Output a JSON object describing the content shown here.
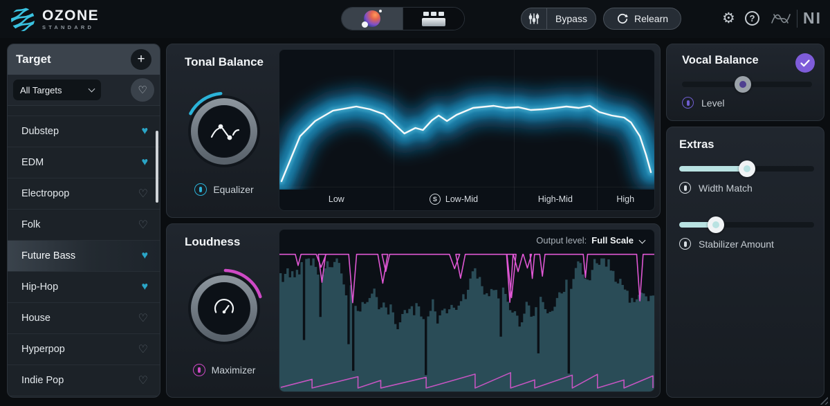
{
  "header": {
    "app_name": "OZONE",
    "app_tier": "STANDARD",
    "bypass_label": "Bypass",
    "relearn_label": "Relearn",
    "ni_logo": "NI"
  },
  "sidebar": {
    "title": "Target",
    "filter_value": "All Targets",
    "items": [
      {
        "label": "Dubstep",
        "favorite": true,
        "selected": false
      },
      {
        "label": "EDM",
        "favorite": true,
        "selected": false
      },
      {
        "label": "Electropop",
        "favorite": false,
        "selected": false
      },
      {
        "label": "Folk",
        "favorite": false,
        "selected": false
      },
      {
        "label": "Future Bass",
        "favorite": true,
        "selected": true
      },
      {
        "label": "Hip-Hop",
        "favorite": true,
        "selected": false
      },
      {
        "label": "House",
        "favorite": false,
        "selected": false
      },
      {
        "label": "Hyperpop",
        "favorite": false,
        "selected": false
      },
      {
        "label": "Indie Pop",
        "favorite": false,
        "selected": false
      }
    ]
  },
  "tonal_balance": {
    "title": "Tonal Balance",
    "module_label": "Equalizer",
    "bands": [
      {
        "label": "Low",
        "solo": false
      },
      {
        "label": "Low-Mid",
        "solo": true
      },
      {
        "label": "High-Mid",
        "solo": false
      },
      {
        "label": "High",
        "solo": false
      }
    ],
    "curve_points": [
      [
        3,
        190
      ],
      [
        30,
        125
      ],
      [
        52,
        103
      ],
      [
        78,
        88
      ],
      [
        112,
        82
      ],
      [
        132,
        86
      ],
      [
        152,
        93
      ],
      [
        168,
        108
      ],
      [
        182,
        121
      ],
      [
        198,
        113
      ],
      [
        209,
        116
      ],
      [
        222,
        102
      ],
      [
        232,
        95
      ],
      [
        244,
        103
      ],
      [
        258,
        94
      ],
      [
        282,
        84
      ],
      [
        312,
        81
      ],
      [
        330,
        84
      ],
      [
        348,
        83
      ],
      [
        366,
        87
      ],
      [
        384,
        86
      ],
      [
        402,
        84
      ],
      [
        418,
        82
      ],
      [
        436,
        84
      ],
      [
        452,
        81
      ],
      [
        466,
        90
      ],
      [
        484,
        95
      ],
      [
        502,
        98
      ],
      [
        512,
        105
      ],
      [
        525,
        125
      ],
      [
        534,
        152
      ],
      [
        541,
        177
      ]
    ]
  },
  "loudness": {
    "title": "Loudness",
    "module_label": "Maximizer",
    "output_level_label": "Output level:",
    "output_level_value": "Full Scale"
  },
  "vocal_balance": {
    "title": "Vocal Balance",
    "slider_label": "Level",
    "slider_percent": 47
  },
  "extras": {
    "title": "Extras",
    "sliders": [
      {
        "label": "Width Match",
        "percent": 50
      },
      {
        "label": "Stabilizer Amount",
        "percent": 27
      }
    ]
  },
  "colors": {
    "accent_cyan": "#2bb3d9",
    "accent_magenta": "#cf49c5",
    "accent_purple": "#7e5cd9",
    "heart_teal": "#2aa5c6",
    "slider_mint": "#b9e2e2",
    "wave_teal": "#2a4c57",
    "wave_pink": "#e057d4"
  }
}
